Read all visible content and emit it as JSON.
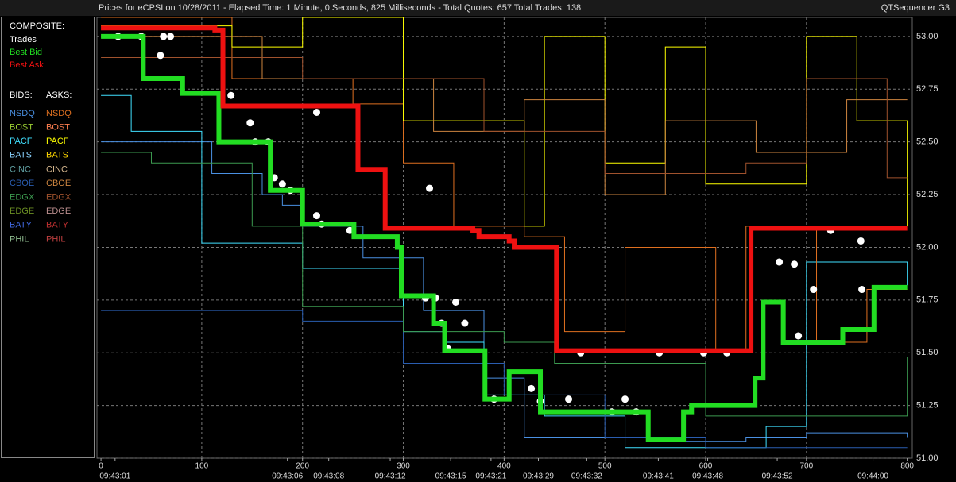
{
  "header": {
    "title": "Prices for  eCPSI  on  10/28/2011  -  Elapsed Time: 1 Minute, 0 Seconds, 825 Milliseconds  -  Total Quotes: 657  Total Trades: 138",
    "app": "QTSequencer G3"
  },
  "chart_data": {
    "type": "step",
    "xlim": [
      -4,
      805
    ],
    "ylim": [
      51,
      53.09
    ],
    "xticks": [
      0,
      100,
      200,
      300,
      400,
      500,
      600,
      700,
      800
    ],
    "yticks": [
      {
        "value": 51,
        "label": "51.00"
      },
      {
        "value": 51.25,
        "label": "51.25"
      },
      {
        "value": 51.5,
        "label": "51.50"
      },
      {
        "value": 51.75,
        "label": "51.75"
      },
      {
        "value": 52,
        "label": "52.00"
      },
      {
        "value": 52.25,
        "label": "52.25"
      },
      {
        "value": 52.5,
        "label": "52.50"
      },
      {
        "value": 52.75,
        "label": "52.75"
      },
      {
        "value": 53,
        "label": "53.00"
      }
    ],
    "time_labels": [
      {
        "value": 14,
        "label": "09:43:01"
      },
      {
        "value": 185,
        "label": "09:43:06"
      },
      {
        "value": 226,
        "label": "09:43:08"
      },
      {
        "value": 287,
        "label": "09:43:12"
      },
      {
        "value": 347,
        "label": "09:43:15"
      },
      {
        "value": 387,
        "label": "09:43:21"
      },
      {
        "value": 434,
        "label": "09:43:29"
      },
      {
        "value": 482,
        "label": "09:43:32"
      },
      {
        "value": 553,
        "label": "09:43:41"
      },
      {
        "value": 602,
        "label": "09:43:48"
      },
      {
        "value": 671,
        "label": "09:43:52"
      },
      {
        "value": 766,
        "label": "09:44:00"
      }
    ],
    "grid": true,
    "composite_label": "COMPOSITE:",
    "series": [
      {
        "name": "Trades",
        "color": "#ffffff",
        "type": "scatter",
        "x": [
          17,
          40,
          62,
          69,
          59,
          129,
          148,
          153,
          166,
          172,
          180,
          188,
          214,
          214,
          219,
          247,
          326,
          322,
          332,
          352,
          338,
          361,
          344,
          390,
          427,
          436,
          464,
          476,
          507,
          531,
          520,
          554,
          598,
          621,
          673,
          707,
          692,
          724,
          755,
          754,
          688
        ],
        "values": [
          53.0,
          53.0,
          53.0,
          53.0,
          52.91,
          52.72,
          52.59,
          52.5,
          52.5,
          52.33,
          52.3,
          52.27,
          52.64,
          52.15,
          52.11,
          52.08,
          52.28,
          51.76,
          51.76,
          51.74,
          51.64,
          51.64,
          51.52,
          51.28,
          51.33,
          51.27,
          51.28,
          51.5,
          51.22,
          51.22,
          51.28,
          51.5,
          51.5,
          51.5,
          51.93,
          51.8,
          51.58,
          52.08,
          51.8,
          52.03,
          51.92
        ]
      },
      {
        "name": "Best Bid",
        "color": "#22dd22",
        "type": "step",
        "x": [
          0,
          42,
          81,
          113,
          117,
          164,
          168,
          200,
          251,
          294,
          298,
          330,
          341,
          381,
          405,
          424,
          436,
          543,
          578,
          586,
          649,
          657,
          677,
          720,
          736,
          767,
          800
        ],
        "values": [
          53.0,
          52.8,
          52.73,
          52.73,
          52.5,
          52.5,
          52.27,
          52.11,
          52.05,
          52.0,
          51.77,
          51.64,
          51.51,
          51.28,
          51.41,
          51.41,
          51.22,
          51.09,
          51.22,
          51.25,
          51.38,
          51.74,
          51.55,
          51.55,
          51.61,
          51.81,
          51.81
        ]
      },
      {
        "name": "Best Ask",
        "color": "#ee1111",
        "type": "step",
        "x": [
          0,
          113,
          121,
          255,
          282,
          369,
          375,
          405,
          410,
          452,
          641,
          645,
          800
        ],
        "values": [
          53.04,
          53.03,
          52.67,
          52.37,
          52.09,
          52.08,
          52.05,
          52.03,
          52.0,
          51.51,
          51.51,
          52.09,
          52.09
        ]
      }
    ],
    "bids_label": "BIDS:",
    "asks_label": "ASKS:",
    "bids": [
      {
        "name": "NSDQ",
        "color": "#4a90e2",
        "x": [
          0,
          110,
          160,
          180,
          200,
          260,
          320,
          380,
          420,
          560,
          640,
          700,
          800
        ],
        "values": [
          52.5,
          52.35,
          52.25,
          52.2,
          52.1,
          51.95,
          51.7,
          51.38,
          51.1,
          51.08,
          51.1,
          51.12,
          51.1
        ]
      },
      {
        "name": "BOST",
        "color": "#9acd32"
      },
      {
        "name": "PACF",
        "color": "#40e0ff",
        "x": [
          0,
          30,
          90,
          100,
          200,
          250,
          300,
          340,
          380,
          440,
          520,
          660,
          700,
          800
        ],
        "values": [
          52.72,
          52.55,
          52.55,
          52.02,
          51.9,
          51.9,
          51.6,
          51.55,
          51.3,
          51.2,
          51.05,
          51.15,
          51.93,
          51.82
        ]
      },
      {
        "name": "BATS",
        "color": "#87cefa"
      },
      {
        "name": "CINC",
        "color": "#5f9ea0"
      },
      {
        "name": "CBOE",
        "color": "#2a5db0",
        "x": [
          0,
          200,
          300,
          400,
          500,
          600,
          800
        ],
        "values": [
          51.7,
          51.65,
          51.45,
          51.3,
          51.1,
          51.05,
          51.05
        ]
      },
      {
        "name": "EDGX",
        "color": "#3c9a50",
        "x": [
          0,
          50,
          150,
          200,
          300,
          400,
          450,
          600,
          700,
          800
        ],
        "values": [
          52.45,
          52.4,
          52.1,
          51.72,
          51.6,
          51.55,
          51.45,
          51.2,
          51.2,
          51.48
        ]
      },
      {
        "name": "EDGE",
        "color": "#6b8e23"
      },
      {
        "name": "BATY",
        "color": "#4169e1"
      },
      {
        "name": "PHIL",
        "color": "#8fbc8f"
      }
    ],
    "asks": [
      {
        "name": "NSDQ",
        "color": "#e07020",
        "x": [
          0,
          130,
          250,
          300,
          350,
          420,
          460,
          520,
          610,
          640,
          710,
          760,
          800
        ],
        "values": [
          53.09,
          52.8,
          52.68,
          52.4,
          52.1,
          52.05,
          51.6,
          52.0,
          51.5,
          52.1,
          51.55,
          51.8,
          51.8
        ]
      },
      {
        "name": "BOST",
        "color": "#ff7f50"
      },
      {
        "name": "PACF",
        "color": "#ffff00",
        "x": [
          0,
          130,
          200,
          300,
          420,
          440,
          500,
          560,
          600,
          700,
          750,
          800
        ],
        "values": [
          53.05,
          52.95,
          53.09,
          52.6,
          52.1,
          53.0,
          52.4,
          52.95,
          52.3,
          53.0,
          52.6,
          52.1
        ]
      },
      {
        "name": "BATS",
        "color": "#ffd700"
      },
      {
        "name": "CINC",
        "color": "#d2b48c"
      },
      {
        "name": "CBOE",
        "color": "#cd853f",
        "x": [
          0,
          160,
          330,
          420,
          500,
          560,
          650,
          740,
          800
        ],
        "values": [
          53.0,
          52.8,
          52.55,
          52.7,
          52.25,
          52.6,
          52.45,
          52.7,
          52.7
        ]
      },
      {
        "name": "EDGX",
        "color": "#a0522d",
        "x": [
          0,
          200,
          380,
          500,
          640,
          700,
          780,
          800
        ],
        "values": [
          52.9,
          52.8,
          52.55,
          52.35,
          52.4,
          52.8,
          52.33,
          52.33
        ]
      },
      {
        "name": "EDGE",
        "color": "#bc8f8f"
      },
      {
        "name": "BATY",
        "color": "#c03030"
      },
      {
        "name": "PHIL",
        "color": "#c04040"
      }
    ]
  }
}
